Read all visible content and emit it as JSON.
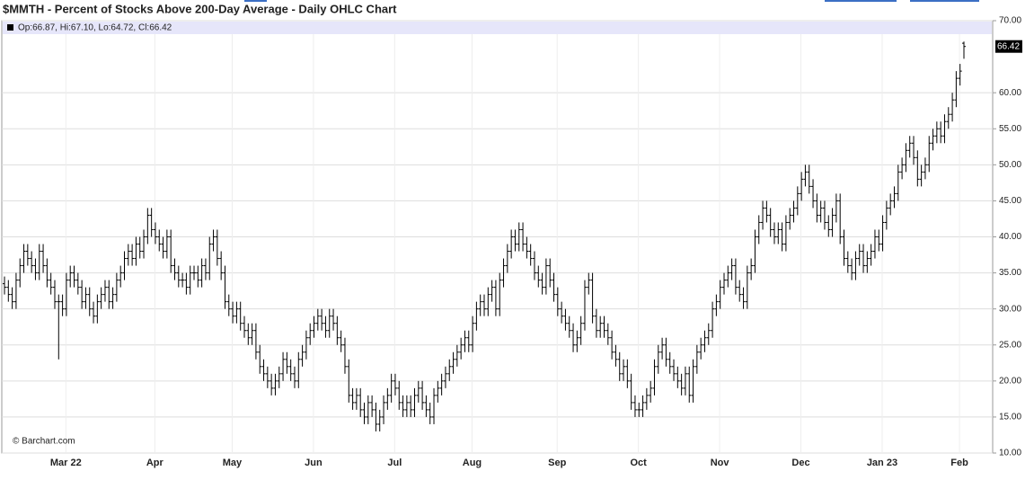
{
  "chart_data": {
    "type": "ohlc",
    "title": "$MMTH - Percent of Stocks Above 200-Day Average - Daily OHLC Chart",
    "info": "Op:66.87, Hi:67.10, Lo:64.72, Cl:66.42",
    "last_label": "66.42",
    "source": "© Barchart.com",
    "color": "#000000",
    "grid": true,
    "ylim": [
      10,
      70
    ],
    "yticks": [
      {
        "value": 10,
        "label": "10.00"
      },
      {
        "value": 15,
        "label": "15.00"
      },
      {
        "value": 20,
        "label": "20.00"
      },
      {
        "value": 25,
        "label": "25.00"
      },
      {
        "value": 30,
        "label": "30.00"
      },
      {
        "value": 35,
        "label": "35.00"
      },
      {
        "value": 40,
        "label": "40.00"
      },
      {
        "value": 45,
        "label": "45.00"
      },
      {
        "value": 50,
        "label": "50.00"
      },
      {
        "value": 55,
        "label": "55.00"
      },
      {
        "value": 60,
        "label": "60.00"
      },
      {
        "value": 70,
        "label": "70.00"
      }
    ],
    "categories": [
      null,
      null,
      null,
      null,
      null,
      null,
      null,
      null,
      null,
      null,
      null,
      null,
      null,
      null,
      "Mar 22",
      null,
      null,
      null,
      null,
      null,
      null,
      null,
      null,
      null,
      null,
      null,
      null,
      null,
      null,
      null,
      null,
      null,
      null,
      null,
      null,
      null,
      null,
      "Apr",
      null,
      null,
      null,
      null,
      null,
      null,
      null,
      null,
      null,
      null,
      null,
      null,
      null,
      null,
      null,
      null,
      null,
      null,
      null,
      "May",
      null,
      null,
      null,
      null,
      null,
      null,
      null,
      null,
      null,
      null,
      null,
      null,
      null,
      null,
      null,
      null,
      null,
      null,
      null,
      null,
      "Jun",
      null,
      null,
      null,
      null,
      null,
      null,
      null,
      null,
      null,
      null,
      null,
      null,
      null,
      null,
      null,
      null,
      null,
      null,
      null,
      null,
      "Jul",
      null,
      null,
      null,
      null,
      null,
      null,
      null,
      null,
      null,
      null,
      null,
      null,
      null,
      null,
      null,
      null,
      null,
      null,
      null,
      "Aug",
      null,
      null,
      null,
      null,
      null,
      null,
      null,
      null,
      null,
      null,
      null,
      null,
      null,
      null,
      null,
      null,
      null,
      null,
      null,
      null,
      null,
      "Sep",
      null,
      null,
      null,
      null,
      null,
      null,
      null,
      null,
      null,
      null,
      null,
      null,
      null,
      null,
      null,
      null,
      null,
      null,
      null,
      null,
      "Oct",
      null,
      null,
      null,
      null,
      null,
      null,
      null,
      null,
      null,
      null,
      null,
      null,
      null,
      null,
      null,
      null,
      null,
      null,
      null,
      null,
      "Nov",
      null,
      null,
      null,
      null,
      null,
      null,
      null,
      null,
      null,
      null,
      null,
      null,
      null,
      null,
      null,
      null,
      null,
      null,
      null,
      null,
      "Dec",
      null,
      null,
      null,
      null,
      null,
      null,
      null,
      null,
      null,
      null,
      null,
      null,
      null,
      null,
      null,
      null,
      null,
      null,
      null,
      null,
      "Jan 23",
      null,
      null,
      null,
      null,
      null,
      null,
      null,
      null,
      null,
      null,
      null,
      null,
      null,
      null,
      null,
      null,
      null,
      null,
      null,
      "Feb",
      null,
      null,
      null
    ],
    "open": [
      33.5,
      33,
      32,
      31,
      34,
      36,
      38,
      37,
      36,
      35,
      38,
      36,
      34,
      33,
      31,
      31,
      30,
      34,
      35,
      34,
      33,
      31,
      32,
      30,
      29,
      31,
      32,
      33,
      31,
      32,
      34,
      35,
      37,
      38,
      37,
      39,
      38,
      40,
      43,
      41,
      40,
      39,
      38,
      40,
      36,
      35,
      34,
      34,
      33,
      35,
      35,
      34,
      36,
      35,
      39,
      40,
      37,
      35,
      31,
      30,
      29,
      30,
      28,
      27,
      26,
      27,
      24,
      22,
      21,
      20,
      19,
      20,
      21,
      23,
      22,
      21,
      20,
      23,
      24,
      26,
      27,
      28,
      29,
      28,
      27,
      29,
      28,
      26,
      25,
      22,
      18,
      17,
      18,
      16,
      15,
      17,
      16,
      14,
      15,
      17,
      18,
      20,
      19,
      17,
      16,
      17,
      16,
      18,
      19,
      17,
      16,
      15,
      18,
      19,
      20,
      21,
      22,
      23,
      24,
      25,
      26,
      25,
      28,
      30,
      31,
      30,
      32,
      33,
      30,
      34,
      36,
      38,
      40,
      39,
      41,
      39,
      38,
      37,
      35,
      34,
      33,
      36,
      34,
      32,
      30,
      29,
      28,
      27,
      25,
      26,
      28,
      33,
      34,
      29,
      27,
      28,
      27,
      26,
      24,
      23,
      21,
      22,
      20,
      17,
      16,
      16,
      17,
      18,
      19,
      22,
      24,
      25,
      23,
      22,
      21,
      20,
      19,
      21,
      18,
      22,
      24,
      25,
      26,
      27,
      30,
      31,
      33,
      34,
      35,
      36,
      33,
      32,
      31,
      35,
      36,
      40,
      42,
      44,
      43,
      41,
      40,
      41,
      39,
      42,
      43,
      44,
      46,
      48,
      49,
      47,
      45,
      43,
      44,
      42,
      41,
      43,
      45,
      40,
      37,
      36,
      35,
      37,
      38,
      36,
      37,
      38,
      40,
      39,
      42,
      44,
      45,
      46,
      49,
      50,
      52,
      53,
      51,
      48,
      49,
      50,
      53,
      54,
      55,
      54,
      56,
      57,
      59,
      62,
      66.87
    ],
    "high": [
      34.5,
      34,
      33,
      35,
      37,
      39,
      39,
      38,
      37,
      39,
      39,
      37,
      35,
      34,
      32,
      32,
      35,
      36,
      36,
      35,
      34,
      33,
      33,
      31,
      32,
      33,
      34,
      34,
      33,
      35,
      36,
      38,
      39,
      39,
      40,
      40,
      41,
      44,
      44,
      42,
      41,
      40,
      41,
      41,
      37,
      36,
      35,
      35,
      36,
      36,
      36,
      37,
      37,
      40,
      41,
      41,
      38,
      36,
      32,
      31,
      31,
      31,
      29,
      28,
      28,
      28,
      25,
      23,
      22,
      21,
      21,
      22,
      24,
      24,
      23,
      22,
      24,
      25,
      27,
      28,
      29,
      30,
      30,
      29,
      30,
      30,
      29,
      27,
      26,
      23,
      19,
      19,
      19,
      17,
      18,
      18,
      17,
      16,
      18,
      19,
      21,
      21,
      20,
      18,
      18,
      18,
      19,
      20,
      20,
      18,
      17,
      19,
      20,
      21,
      22,
      23,
      24,
      25,
      26,
      27,
      27,
      29,
      31,
      32,
      32,
      33,
      34,
      34,
      35,
      37,
      39,
      41,
      41,
      42,
      42,
      40,
      39,
      38,
      36,
      35,
      37,
      37,
      35,
      33,
      31,
      30,
      29,
      28,
      27,
      29,
      34,
      35,
      35,
      30,
      29,
      29,
      28,
      27,
      25,
      24,
      23,
      23,
      21,
      18,
      17,
      18,
      19,
      20,
      23,
      25,
      26,
      26,
      24,
      23,
      22,
      21,
      22,
      22,
      23,
      25,
      26,
      27,
      28,
      31,
      32,
      34,
      35,
      36,
      37,
      37,
      34,
      33,
      36,
      37,
      41,
      43,
      45,
      45,
      44,
      42,
      42,
      42,
      43,
      44,
      45,
      47,
      49,
      50,
      50,
      48,
      46,
      45,
      45,
      43,
      44,
      46,
      46,
      41,
      38,
      37,
      38,
      39,
      39,
      38,
      39,
      41,
      41,
      43,
      45,
      46,
      47,
      50,
      51,
      53,
      54,
      54,
      52,
      50,
      51,
      54,
      55,
      56,
      56,
      57,
      58,
      60,
      63,
      64,
      67.1
    ],
    "low": [
      32,
      31,
      30,
      30,
      33,
      35,
      36,
      35,
      34,
      34,
      35,
      33,
      32,
      30,
      23,
      29,
      29,
      33,
      33,
      32,
      30,
      30,
      29,
      28,
      28,
      30,
      31,
      30,
      30,
      31,
      33,
      34,
      36,
      36,
      36,
      37,
      37,
      39,
      40,
      39,
      38,
      37,
      37,
      35,
      34,
      33,
      33,
      32,
      32,
      34,
      33,
      33,
      34,
      34,
      38,
      36,
      34,
      30,
      29,
      28,
      28,
      27,
      26,
      25,
      25,
      23,
      21,
      20,
      19,
      18,
      18,
      19,
      20,
      21,
      20,
      19,
      19,
      22,
      23,
      25,
      26,
      27,
      27,
      26,
      26,
      27,
      25,
      24,
      21,
      17,
      16,
      16,
      15,
      14,
      14,
      15,
      13,
      13,
      14,
      16,
      17,
      18,
      16,
      15,
      15,
      15,
      15,
      17,
      16,
      15,
      14,
      14,
      17,
      18,
      19,
      20,
      21,
      22,
      23,
      24,
      24,
      24,
      27,
      29,
      29,
      29,
      31,
      29,
      29,
      33,
      35,
      37,
      38,
      38,
      38,
      37,
      36,
      34,
      33,
      32,
      32,
      33,
      31,
      29,
      28,
      27,
      26,
      24,
      24,
      25,
      27,
      32,
      28,
      26,
      26,
      26,
      25,
      23,
      22,
      20,
      20,
      19,
      16,
      15,
      15,
      15,
      16,
      17,
      18,
      21,
      23,
      22,
      21,
      20,
      19,
      18,
      18,
      17,
      17,
      21,
      23,
      24,
      25,
      26,
      29,
      30,
      32,
      33,
      34,
      32,
      31,
      30,
      30,
      34,
      35,
      39,
      41,
      42,
      40,
      39,
      39,
      38,
      38,
      41,
      42,
      43,
      45,
      47,
      46,
      44,
      42,
      42,
      41,
      40,
      40,
      42,
      39,
      36,
      35,
      34,
      34,
      36,
      35,
      35,
      36,
      37,
      38,
      38,
      41,
      43,
      44,
      45,
      48,
      49,
      51,
      50,
      47,
      47,
      48,
      49,
      52,
      53,
      53,
      53,
      55,
      56,
      58,
      61,
      64.72
    ],
    "close": [
      33,
      32,
      31,
      34,
      36,
      38,
      37,
      36,
      35,
      38,
      36,
      34,
      33,
      31,
      31,
      30,
      34,
      35,
      34,
      33,
      31,
      32,
      30,
      29,
      31,
      32,
      33,
      31,
      32,
      34,
      35,
      37,
      38,
      37,
      39,
      38,
      40,
      43,
      41,
      40,
      39,
      38,
      40,
      36,
      35,
      34,
      34,
      33,
      35,
      35,
      34,
      36,
      35,
      39,
      40,
      37,
      35,
      31,
      30,
      29,
      30,
      28,
      27,
      26,
      27,
      24,
      22,
      21,
      20,
      19,
      20,
      21,
      23,
      22,
      21,
      20,
      23,
      24,
      26,
      27,
      28,
      29,
      28,
      27,
      29,
      28,
      26,
      25,
      22,
      18,
      17,
      18,
      16,
      15,
      17,
      16,
      14,
      15,
      17,
      18,
      20,
      19,
      17,
      16,
      17,
      16,
      18,
      19,
      17,
      16,
      15,
      18,
      19,
      20,
      21,
      22,
      23,
      24,
      25,
      26,
      25,
      28,
      30,
      31,
      30,
      32,
      33,
      30,
      34,
      36,
      38,
      40,
      39,
      41,
      39,
      38,
      37,
      35,
      34,
      33,
      36,
      34,
      32,
      30,
      29,
      28,
      27,
      25,
      26,
      28,
      33,
      34,
      29,
      27,
      28,
      27,
      26,
      24,
      23,
      21,
      22,
      20,
      17,
      16,
      16,
      17,
      18,
      19,
      22,
      24,
      25,
      23,
      22,
      21,
      20,
      19,
      21,
      18,
      22,
      24,
      25,
      26,
      27,
      30,
      31,
      33,
      34,
      35,
      36,
      33,
      32,
      31,
      35,
      36,
      40,
      42,
      44,
      43,
      41,
      40,
      41,
      39,
      42,
      43,
      44,
      46,
      48,
      49,
      47,
      45,
      43,
      44,
      42,
      41,
      43,
      45,
      40,
      37,
      36,
      35,
      37,
      38,
      36,
      37,
      38,
      40,
      39,
      42,
      44,
      45,
      46,
      49,
      50,
      52,
      53,
      51,
      48,
      49,
      50,
      53,
      54,
      55,
      54,
      56,
      57,
      59,
      62,
      63,
      66.42
    ]
  }
}
